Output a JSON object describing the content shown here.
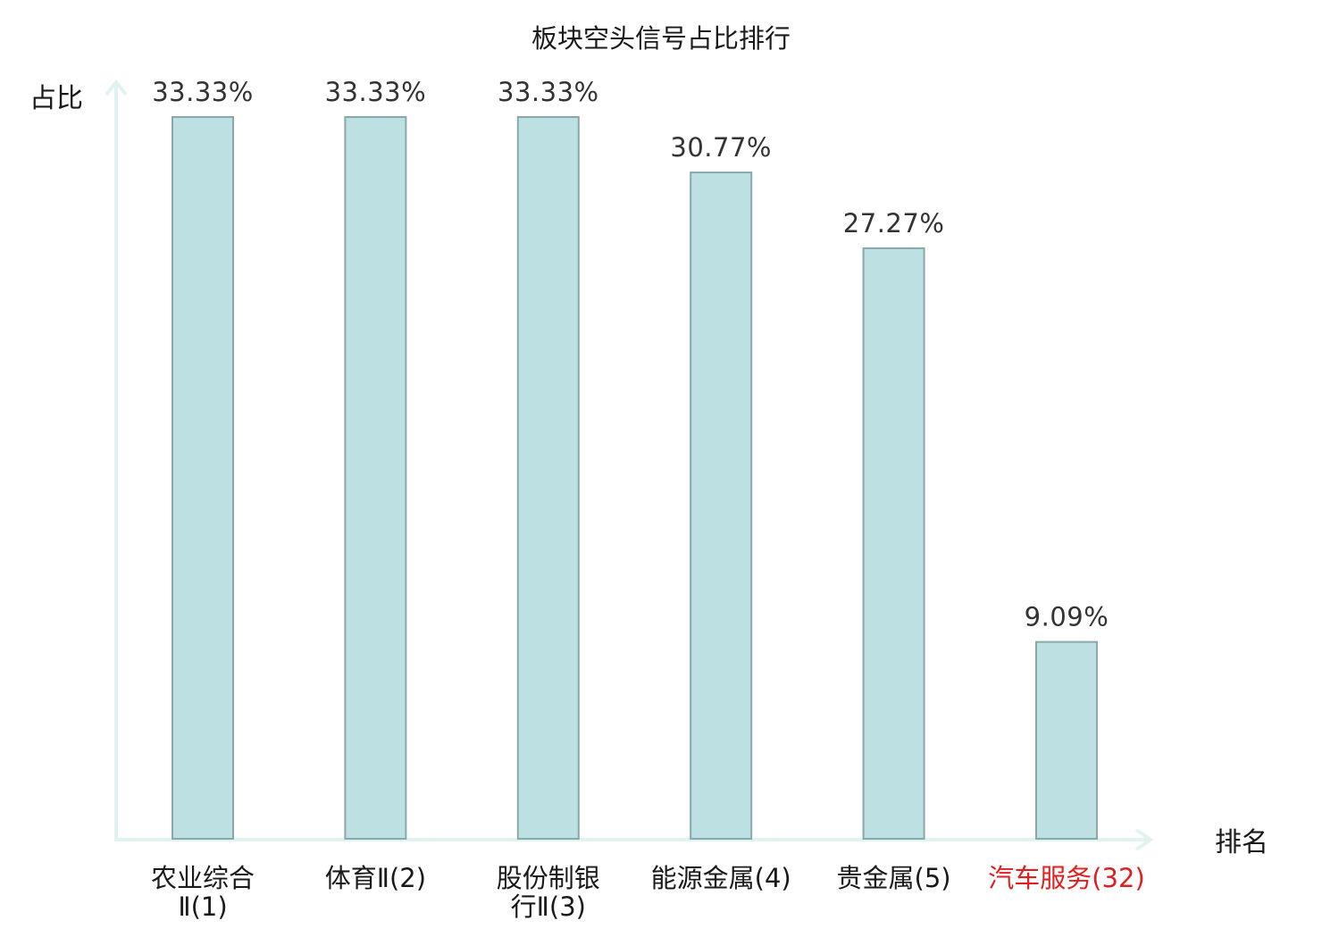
{
  "chart_data": {
    "type": "bar",
    "title": "板块空头信号占比排行",
    "ylabel": "占比",
    "xlabel": "排名",
    "ylim": [
      0,
      0.3333
    ],
    "categories": [
      {
        "line1": "农业综合",
        "line2": "Ⅱ(1)",
        "highlight": false
      },
      {
        "line1": "体育Ⅱ(2)",
        "line2": "",
        "highlight": false
      },
      {
        "line1": "股份制银",
        "line2": "行Ⅱ(3)",
        "highlight": false
      },
      {
        "line1": "能源金属(4)",
        "line2": "",
        "highlight": false
      },
      {
        "line1": "贵金属(5)",
        "line2": "",
        "highlight": false
      },
      {
        "line1": "汽车服务(32)",
        "line2": "",
        "highlight": true
      }
    ],
    "values": [
      0.3333,
      0.3333,
      0.3333,
      0.3077,
      0.2727,
      0.0909
    ],
    "value_labels": [
      "33.33%",
      "33.33%",
      "33.33%",
      "30.77%",
      "27.27%",
      "9.09%"
    ],
    "grid": false,
    "colors": {
      "bar_fill": "#bde0e3",
      "bar_stroke": "#8aa8aa",
      "axis": "#e0f3f1",
      "label_normal": "#1a1a1a",
      "label_highlight": "#e02020"
    }
  }
}
